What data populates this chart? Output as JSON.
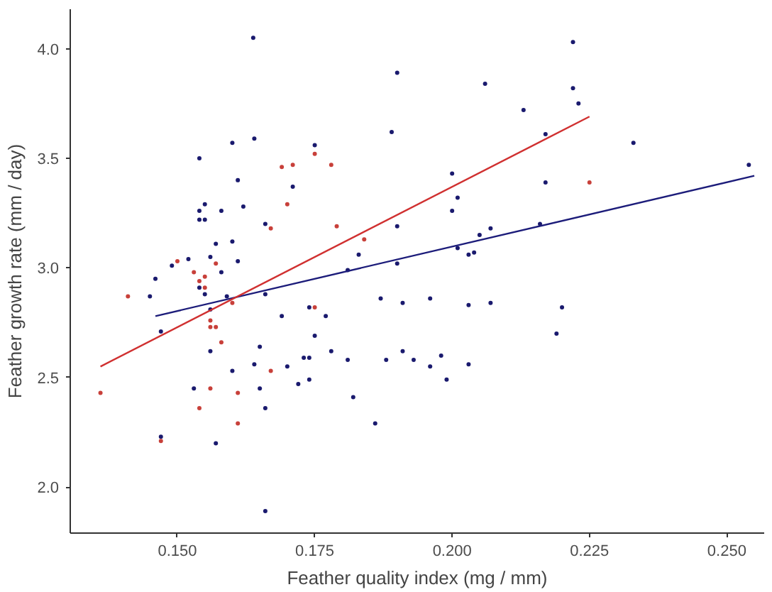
{
  "chart_data": {
    "type": "scatter",
    "xlabel": "Feather quality index (mg / mm)",
    "ylabel": "Feather growth rate (mm / day)",
    "xlim": [
      0.1305,
      0.2568
    ],
    "ylim": [
      1.79,
      4.18
    ],
    "xticks": [
      {
        "value": 0.15,
        "label": "0.150"
      },
      {
        "value": 0.175,
        "label": "0.175"
      },
      {
        "value": 0.2,
        "label": "0.200"
      },
      {
        "value": 0.225,
        "label": "0.225"
      },
      {
        "value": 0.25,
        "label": "0.250"
      }
    ],
    "yticks": [
      {
        "value": 2,
        "label": "2.0"
      },
      {
        "value": 2.5,
        "label": "2.5"
      },
      {
        "value": 3,
        "label": "3.0"
      },
      {
        "value": 3.5,
        "label": "3.5"
      },
      {
        "value": 4,
        "label": "4.0"
      }
    ],
    "grid": false,
    "marker": "circle",
    "series": [
      {
        "color": "#1a1a6e",
        "x": [
          0.1638,
          0.164,
          0.16,
          0.154,
          0.161,
          0.155,
          0.154,
          0.158,
          0.162,
          0.154,
          0.155,
          0.166,
          0.157,
          0.16,
          0.156,
          0.161,
          0.149,
          0.152,
          0.158,
          0.146,
          0.145,
          0.154,
          0.155,
          0.159,
          0.166,
          0.156,
          0.147,
          0.165,
          0.156,
          0.164,
          0.16,
          0.153,
          0.165,
          0.166,
          0.147,
          0.157,
          0.166,
          0.19,
          0.206,
          0.189,
          0.175,
          0.171,
          0.2,
          0.201,
          0.2,
          0.19,
          0.205,
          0.207,
          0.183,
          0.201,
          0.203,
          0.204,
          0.19,
          0.181,
          0.187,
          0.191,
          0.196,
          0.203,
          0.207,
          0.169,
          0.174,
          0.177,
          0.175,
          0.178,
          0.173,
          0.174,
          0.181,
          0.191,
          0.193,
          0.198,
          0.188,
          0.196,
          0.203,
          0.17,
          0.172,
          0.174,
          0.199,
          0.182,
          0.186,
          0.222,
          0.222,
          0.223,
          0.213,
          0.217,
          0.233,
          0.254,
          0.217,
          0.216,
          0.22,
          0.219
        ],
        "values": [
          4.05,
          3.59,
          3.57,
          3.5,
          3.4,
          3.29,
          3.26,
          3.26,
          3.28,
          3.22,
          3.22,
          3.2,
          3.11,
          3.12,
          3.05,
          3.03,
          3.01,
          3.04,
          2.98,
          2.95,
          2.87,
          2.91,
          2.88,
          2.87,
          2.88,
          2.81,
          2.71,
          2.64,
          2.62,
          2.56,
          2.53,
          2.45,
          2.45,
          2.36,
          2.23,
          2.2,
          1.89,
          3.89,
          3.84,
          3.62,
          3.56,
          3.37,
          3.43,
          3.32,
          3.26,
          3.19,
          3.15,
          3.18,
          3.06,
          3.09,
          3.06,
          3.07,
          3.02,
          2.99,
          2.86,
          2.84,
          2.86,
          2.83,
          2.84,
          2.78,
          2.82,
          2.78,
          2.69,
          2.62,
          2.59,
          2.59,
          2.58,
          2.62,
          2.58,
          2.6,
          2.58,
          2.55,
          2.56,
          2.55,
          2.47,
          2.49,
          2.49,
          2.41,
          2.29,
          4.03,
          3.82,
          3.75,
          3.72,
          3.61,
          3.57,
          3.47,
          3.39,
          3.2,
          2.82,
          2.7
        ]
      },
      {
        "color": "#c8403a",
        "x": [
          0.167,
          0.15,
          0.157,
          0.153,
          0.155,
          0.141,
          0.154,
          0.155,
          0.16,
          0.156,
          0.156,
          0.157,
          0.158,
          0.167,
          0.156,
          0.161,
          0.154,
          0.161,
          0.147,
          0.136,
          0.175,
          0.169,
          0.171,
          0.178,
          0.17,
          0.179,
          0.184,
          0.175,
          0.225
        ],
        "values": [
          3.18,
          3.03,
          3.02,
          2.98,
          2.96,
          2.87,
          2.94,
          2.91,
          2.84,
          2.76,
          2.73,
          2.73,
          2.66,
          2.53,
          2.45,
          2.43,
          2.36,
          2.29,
          2.21,
          2.43,
          3.52,
          3.46,
          3.47,
          3.47,
          3.29,
          3.19,
          3.13,
          2.82,
          3.39
        ]
      },
      {
        "type": "line",
        "marker": "none",
        "color": "#1c1c7a",
        "x": [
          0.146,
          0.255
        ],
        "values": [
          2.78,
          3.42
        ]
      },
      {
        "type": "line",
        "marker": "none",
        "color": "#d03030",
        "x": [
          0.136,
          0.225
        ],
        "values": [
          2.55,
          3.69
        ]
      }
    ]
  }
}
